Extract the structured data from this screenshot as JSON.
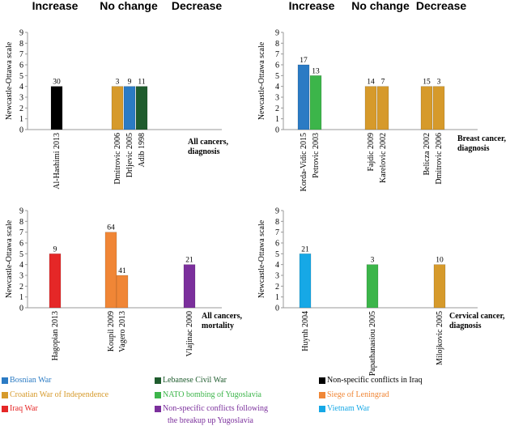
{
  "headers": {
    "increase": "Increase",
    "no_change": "No change",
    "decrease": "Decrease"
  },
  "colors": {
    "bosnian": "#2b7bc4",
    "croatian": "#d69a2b",
    "iraq": "#e52727",
    "lebanese": "#1f5c2e",
    "nato": "#3cb54a",
    "nonspecific_yugo": "#7b2f9c",
    "nonspecific_iraq": "#000000",
    "leningrad": "#f08636",
    "vietnam": "#16a8e6"
  },
  "legend": {
    "bosnian": "Bosnian War",
    "croatian": "Croatian War of Independence",
    "iraq": "Iraq War",
    "lebanese": "Lebanese Civil War",
    "nato": "NATO bombing of Yugoslavia",
    "nonspecific_yugo_line1": "Non-specific conflicts following",
    "nonspecific_yugo_line2": "the breakup up Yugoslavia",
    "nonspecific_iraq": "Non-specific conflicts in Iraq",
    "leningrad": "Siege of Leningrad",
    "vietnam": "Vietnam War"
  },
  "chart_data": [
    {
      "type": "bar",
      "panel_label": [
        "All cancers,",
        "diagnosis"
      ],
      "ylabel": "Newcastle-Ottawa scale",
      "ylim": [
        0,
        9
      ],
      "bars": [
        {
          "category": "Al-Hashimi 2013",
          "value": 4,
          "label": "30",
          "series": "nonspecific_iraq",
          "group": "increase"
        },
        {
          "category": "Dmitrovic 2006",
          "value": 4,
          "label": "3",
          "series": "croatian",
          "group": "no_change"
        },
        {
          "category": "Drljevic 2005",
          "value": 4,
          "label": "9",
          "series": "bosnian",
          "group": "no_change"
        },
        {
          "category": "Adib 1998",
          "value": 4,
          "label": "11",
          "series": "lebanese",
          "group": "no_change"
        }
      ]
    },
    {
      "type": "bar",
      "panel_label": [
        "Breast cancer,",
        "diagnosis"
      ],
      "ylabel": "Newcastle-Ottawa scale",
      "ylim": [
        0,
        9
      ],
      "bars": [
        {
          "category": "Korda-Vidic 2015",
          "value": 6,
          "label": "17",
          "series": "bosnian",
          "group": "increase"
        },
        {
          "category": "Petrovic 2003",
          "value": 5,
          "label": "13",
          "series": "nato",
          "group": "increase"
        },
        {
          "category": "Fajdic 2009",
          "value": 4,
          "label": "14",
          "series": "croatian",
          "group": "no_change"
        },
        {
          "category": "Karelovic 2002",
          "value": 4,
          "label": "7",
          "series": "croatian",
          "group": "no_change"
        },
        {
          "category": "Beliczа 2002",
          "value": 4,
          "label": "15",
          "series": "croatian",
          "group": "decrease"
        },
        {
          "category": "Dmitrovic 2006",
          "value": 4,
          "label": "3",
          "series": "croatian",
          "group": "decrease"
        }
      ]
    },
    {
      "type": "bar",
      "panel_label": [
        "All cancers,",
        "mortality"
      ],
      "ylabel": "Newcastle-Ottawa scale",
      "ylim": [
        0,
        9
      ],
      "bars": [
        {
          "category": "Hagopian 2013",
          "value": 5,
          "label": "9",
          "series": "iraq",
          "group": "increase"
        },
        {
          "category": "Koupil 2009",
          "value": 7,
          "label": "64",
          "series": "leningrad",
          "group": "no_change"
        },
        {
          "category": "Vagero 2013",
          "value": 3,
          "label": "41",
          "series": "leningrad",
          "group": "no_change"
        },
        {
          "category": "Vlajinac 2000",
          "value": 4,
          "label": "21",
          "series": "nonspecific_yugo",
          "group": "decrease"
        }
      ]
    },
    {
      "type": "bar",
      "panel_label": [
        "Cervical cancer,",
        "diagnosis"
      ],
      "ylabel": "Newcastle-Ottawa scale",
      "ylim": [
        0,
        9
      ],
      "bars": [
        {
          "category": "Huynh 2004",
          "value": 5,
          "label": "21",
          "series": "vietnam",
          "group": "increase"
        },
        {
          "category": "Papathanasiou 2005",
          "value": 4,
          "label": "3",
          "series": "nato",
          "group": "no_change"
        },
        {
          "category": "Milojkovic 2005",
          "value": 4,
          "label": "10",
          "series": "croatian",
          "group": "decrease"
        }
      ]
    }
  ]
}
